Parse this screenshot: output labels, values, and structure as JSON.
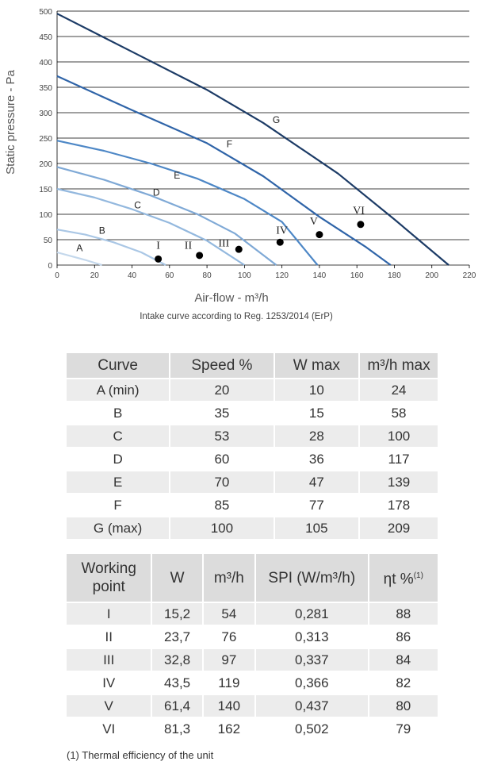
{
  "chart_data": {
    "type": "line",
    "title": "",
    "xlabel": "Air-flow - m³/h",
    "ylabel": "Static pressure - Pa",
    "subtitle": "Intake curve according to Reg. 1253/2014 (ErP)",
    "xlim": [
      0,
      220
    ],
    "ylim": [
      0,
      500
    ],
    "x_ticks": [
      "0",
      "20",
      "40",
      "60",
      "80",
      "100",
      "120",
      "140",
      "160",
      "180",
      "200",
      "220"
    ],
    "y_ticks": [
      "0",
      "50",
      "100",
      "150",
      "200",
      "250",
      "300",
      "350",
      "400",
      "450",
      "500"
    ],
    "series": [
      {
        "name": "A",
        "color": "#c4d8ec",
        "points": [
          [
            0,
            25
          ],
          [
            8,
            17
          ],
          [
            16,
            9
          ],
          [
            24,
            0
          ]
        ]
      },
      {
        "name": "B",
        "color": "#aac7e5",
        "points": [
          [
            0,
            70
          ],
          [
            15,
            60
          ],
          [
            30,
            45
          ],
          [
            45,
            25
          ],
          [
            58,
            0
          ]
        ]
      },
      {
        "name": "C",
        "color": "#93b8de",
        "points": [
          [
            0,
            150
          ],
          [
            20,
            133
          ],
          [
            40,
            110
          ],
          [
            60,
            83
          ],
          [
            80,
            48
          ],
          [
            100,
            0
          ]
        ]
      },
      {
        "name": "D",
        "color": "#7fa9d6",
        "points": [
          [
            0,
            193
          ],
          [
            25,
            168
          ],
          [
            50,
            137
          ],
          [
            75,
            100
          ],
          [
            95,
            62
          ],
          [
            117,
            0
          ]
        ]
      },
      {
        "name": "E",
        "color": "#4d87c6",
        "points": [
          [
            0,
            245
          ],
          [
            25,
            225
          ],
          [
            50,
            200
          ],
          [
            75,
            170
          ],
          [
            100,
            130
          ],
          [
            120,
            85
          ],
          [
            139,
            0
          ]
        ]
      },
      {
        "name": "F",
        "color": "#2f64a8",
        "points": [
          [
            0,
            372
          ],
          [
            40,
            305
          ],
          [
            80,
            240
          ],
          [
            110,
            175
          ],
          [
            140,
            95
          ],
          [
            165,
            35
          ],
          [
            178,
            0
          ]
        ]
      },
      {
        "name": "G",
        "color": "#1c3b66",
        "points": [
          [
            0,
            495
          ],
          [
            40,
            420
          ],
          [
            80,
            345
          ],
          [
            110,
            280
          ],
          [
            150,
            180
          ],
          [
            180,
            90
          ],
          [
            209,
            0
          ]
        ]
      }
    ],
    "curve_labels": [
      {
        "text": "A",
        "x": 12,
        "y": 27
      },
      {
        "text": "B",
        "x": 24,
        "y": 62
      },
      {
        "text": "C",
        "x": 43,
        "y": 112
      },
      {
        "text": "D",
        "x": 53,
        "y": 137
      },
      {
        "text": "E",
        "x": 64,
        "y": 170
      },
      {
        "text": "F",
        "x": 92,
        "y": 232
      },
      {
        "text": "G",
        "x": 117,
        "y": 280
      }
    ],
    "working_points": [
      {
        "label": "I",
        "x": 54,
        "y": 12,
        "lx": 54,
        "ly": 32
      },
      {
        "label": "II",
        "x": 76,
        "y": 19,
        "lx": 70,
        "ly": 32
      },
      {
        "label": "III",
        "x": 97,
        "y": 31,
        "lx": 89,
        "ly": 37
      },
      {
        "label": "IV",
        "x": 119,
        "y": 45,
        "lx": 120,
        "ly": 62
      },
      {
        "label": "V",
        "x": 140,
        "y": 60,
        "lx": 137,
        "ly": 80
      },
      {
        "label": "VI",
        "x": 162,
        "y": 80,
        "lx": 161,
        "ly": 101
      }
    ]
  },
  "table1": {
    "headers": [
      "Curve",
      "Speed %",
      "W max",
      "m³/h max"
    ],
    "rows": [
      [
        "A (min)",
        "20",
        "10",
        "24"
      ],
      [
        "B",
        "35",
        "15",
        "58"
      ],
      [
        "C",
        "53",
        "28",
        "100"
      ],
      [
        "D",
        "60",
        "36",
        "117"
      ],
      [
        "E",
        "70",
        "47",
        "139"
      ],
      [
        "F",
        "85",
        "77",
        "178"
      ],
      [
        "G (max)",
        "100",
        "105",
        "209"
      ]
    ]
  },
  "table2": {
    "headers": {
      "h0_line1": "Working",
      "h0_line2": "point",
      "h1": "W",
      "h2": "m³/h",
      "h3": "SPI (W/m³/h)",
      "h4": "ηt %",
      "h4_sup": "(1)"
    },
    "rows": [
      [
        "I",
        "15,2",
        "54",
        "0,281",
        "88"
      ],
      [
        "II",
        "23,7",
        "76",
        "0,313",
        "86"
      ],
      [
        "III",
        "32,8",
        "97",
        "0,337",
        "84"
      ],
      [
        "IV",
        "43,5",
        "119",
        "0,366",
        "82"
      ],
      [
        "V",
        "61,4",
        "140",
        "0,437",
        "80"
      ],
      [
        "VI",
        "81,3",
        "162",
        "0,502",
        "79"
      ]
    ]
  },
  "footnote": "(1) Thermal efficiency of the unit"
}
